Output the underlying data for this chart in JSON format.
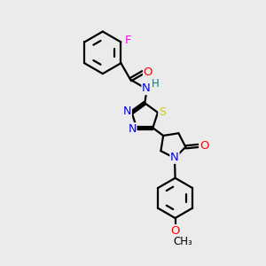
{
  "bg_color": "#ebebeb",
  "bond_color": "#000000",
  "atom_colors": {
    "N": "#0000ff",
    "O": "#ff0000",
    "S": "#cccc00",
    "F": "#ff00ff",
    "H": "#008080",
    "C": "#000000"
  },
  "figsize": [
    3.0,
    3.0
  ],
  "dpi": 100
}
